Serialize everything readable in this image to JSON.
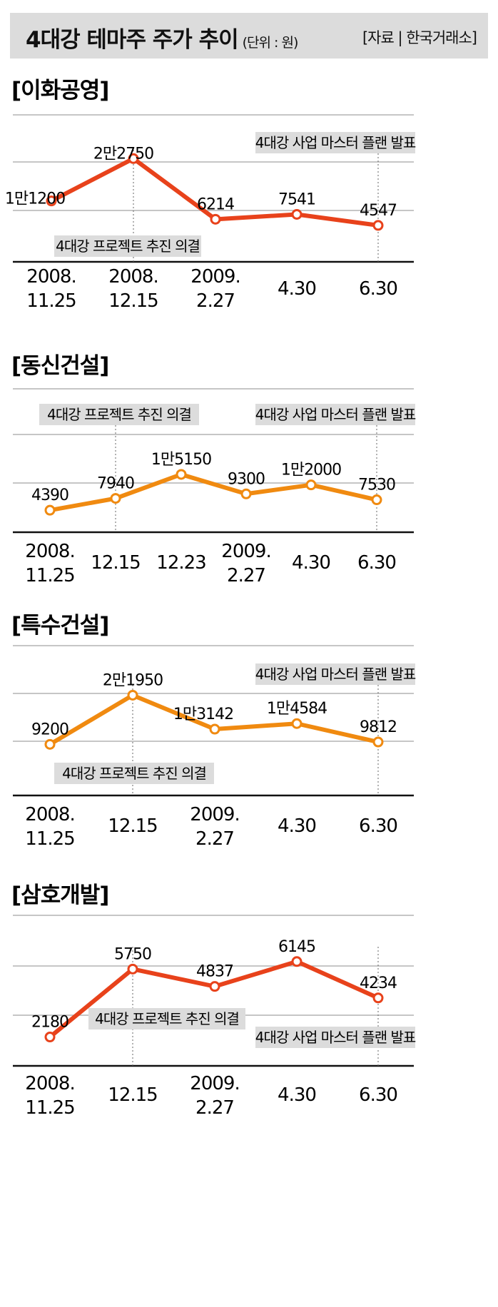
{
  "header": {
    "title": "4대강 테마주 주가 추이",
    "unit": "(단위 : 원)",
    "source": "[자료 | 한국거래소]"
  },
  "annotations": {
    "project": "4대강 프로젝트 추진 의결",
    "master_plan": "4대강 사업 마스터 플랜 발표"
  },
  "colors": {
    "red": "#e8421b",
    "orange": "#f08a10",
    "grid": "#b4b4b4",
    "label_bg": "#dcdcdc",
    "axis": "#111111"
  },
  "chart_data": [
    {
      "type": "line",
      "title": "[이화공영]",
      "color": "red",
      "x": [
        [
          "2008.",
          "11.25"
        ],
        [
          "2008.",
          "12.15"
        ],
        [
          "2009.",
          "2.27"
        ],
        [
          "4.30"
        ],
        [
          "6.30"
        ]
      ],
      "values": [
        11200,
        22750,
        6214,
        7541,
        4547
      ],
      "labels": [
        "1만1200",
        "2만2750",
        "6214",
        "7541",
        "4547"
      ],
      "event_points": {
        "project": 1,
        "master_plan": 4
      },
      "ylim": [
        -5000,
        30000
      ]
    },
    {
      "type": "line",
      "title": "[동신건설]",
      "color": "orange",
      "x": [
        [
          "2008.",
          "11.25"
        ],
        [
          "12.15"
        ],
        [
          "12.23"
        ],
        [
          "2009.",
          "2.27"
        ],
        [
          "4.30"
        ],
        [
          "6.30"
        ]
      ],
      "values": [
        4390,
        7940,
        15150,
        9300,
        12000,
        7530
      ],
      "labels": [
        "4390",
        "7940",
        "1만5150",
        "9300",
        "1만2000",
        "7530"
      ],
      "event_points": {
        "project": 1,
        "master_plan": 5
      },
      "ylim": [
        -2000,
        28000
      ]
    },
    {
      "type": "line",
      "title": "[특수건설]",
      "color": "orange",
      "x": [
        [
          "2008.",
          "11.25"
        ],
        [
          "12.15"
        ],
        [
          "2009.",
          "2.27"
        ],
        [
          "4.30"
        ],
        [
          "6.30"
        ]
      ],
      "values": [
        9200,
        21950,
        13142,
        14584,
        9812
      ],
      "labels": [
        "9200",
        "2만1950",
        "1만3142",
        "1만4584",
        "9812"
      ],
      "event_points": {
        "project": 1,
        "master_plan": 4
      },
      "ylim": [
        0,
        30000
      ]
    },
    {
      "type": "line",
      "title": "[삼호개발]",
      "color": "red",
      "x": [
        [
          "2008.",
          "11.25"
        ],
        [
          "12.15"
        ],
        [
          "2009.",
          "2.27"
        ],
        [
          "4.30"
        ],
        [
          "6.30"
        ]
      ],
      "values": [
        2180,
        5750,
        4837,
        6145,
        4234
      ],
      "labels": [
        "2180",
        "5750",
        "4837",
        "6145",
        "4234"
      ],
      "event_points": {
        "project": 1,
        "master_plan": 4
      },
      "ylim": [
        1000,
        7000
      ]
    }
  ]
}
